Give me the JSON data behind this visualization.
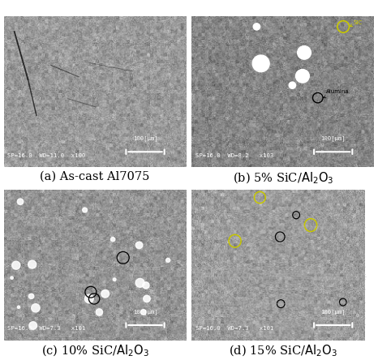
{
  "captions": [
    "(a) As-cast Al7075",
    "(b) 5% SiC/Al₂O₃",
    "(c) 10% SiC/Al₂O₃",
    "(d) 15% SiC/Al₂O₃"
  ],
  "fig_width": 4.66,
  "fig_height": 4.44,
  "dpi": 100,
  "background_color": "#ffffff",
  "caption_fontsize": 10.5,
  "sic_label_color": "#c8c800",
  "sp_labels": [
    "SP=16.0  WD=11.0  x100",
    "SP=16.0  WD=8.2   x103",
    "SP=16.0  WD=7.3   x101",
    "SP=16.0  WD=7.3   x101"
  ],
  "scale_text": "100[μm]",
  "base_grays": [
    0.6,
    0.52,
    0.58,
    0.61
  ]
}
